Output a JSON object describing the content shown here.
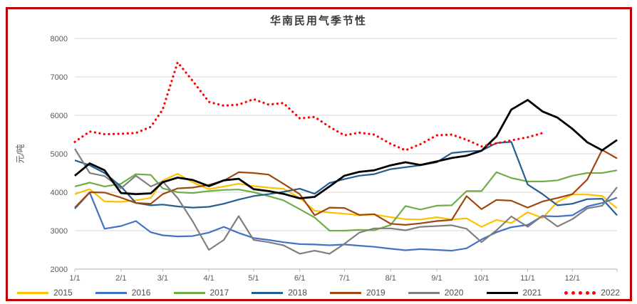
{
  "frame": {
    "border_color": "#C00000"
  },
  "chart_data": {
    "type": "line",
    "title": "华南民用气季节性",
    "ylabel": "元/吨",
    "xlabel": "",
    "ylim": [
      2000,
      8000
    ],
    "ytick_interval": 1000,
    "ytick_labels": [
      "2000",
      "3000",
      "4000",
      "5000",
      "6000",
      "7000",
      "8000"
    ],
    "xtick_labels": [
      "1/1",
      "2/1",
      "3/1",
      "4/1",
      "5/1",
      "6/1",
      "7/1",
      "8/1",
      "9/1",
      "10/1",
      "11/1",
      "12/1"
    ],
    "xtick_days": [
      1,
      32,
      60,
      91,
      121,
      152,
      182,
      213,
      244,
      274,
      305,
      335
    ],
    "grid": "horizontal",
    "legend_position": "bottom",
    "axis_color": "#BFBFBF",
    "grid_color": "#D9D9D9",
    "tick_label_color": "#595959",
    "x_days": [
      1,
      11,
      21,
      32,
      42,
      52,
      60,
      70,
      80,
      91,
      101,
      111,
      121,
      131,
      141,
      152,
      162,
      172,
      182,
      192,
      202,
      213,
      223,
      233,
      244,
      254,
      264,
      274,
      284,
      294,
      305,
      315,
      325,
      335,
      345,
      355,
      365
    ],
    "series": [
      {
        "name": "2015",
        "color": "#FFC000",
        "style": "solid",
        "width": 2.2,
        "values": [
          3950,
          4080,
          3760,
          3750,
          3790,
          3850,
          4300,
          4480,
          4260,
          4080,
          4150,
          4220,
          4160,
          4120,
          4090,
          3850,
          3520,
          3470,
          3440,
          3400,
          3420,
          3350,
          3300,
          3290,
          3350,
          3290,
          3320,
          3100,
          3280,
          3200,
          3480,
          3330,
          3750,
          3940,
          3940,
          3900,
          3580
        ]
      },
      {
        "name": "2016",
        "color": "#4472C4",
        "style": "solid",
        "width": 2.2,
        "values": [
          3570,
          3990,
          3050,
          3120,
          3250,
          2960,
          2880,
          2850,
          2860,
          2950,
          3100,
          2940,
          2810,
          2760,
          2700,
          2650,
          2640,
          2620,
          2640,
          2610,
          2580,
          2530,
          2490,
          2520,
          2500,
          2480,
          2540,
          2770,
          2960,
          3090,
          3150,
          3380,
          3370,
          3400,
          3630,
          3720,
          3860
        ]
      },
      {
        "name": "2017",
        "color": "#70AD47",
        "style": "solid",
        "width": 2.2,
        "values": [
          4150,
          4250,
          4150,
          4220,
          4470,
          4450,
          4100,
          4000,
          3980,
          4030,
          4060,
          4070,
          4000,
          3900,
          3790,
          3560,
          3340,
          3000,
          3000,
          3020,
          3010,
          3150,
          3640,
          3550,
          3650,
          3660,
          4030,
          4030,
          4520,
          4370,
          4280,
          4280,
          4310,
          4430,
          4500,
          4500,
          4570
        ]
      },
      {
        "name": "2018",
        "color": "#255E91",
        "style": "solid",
        "width": 2.2,
        "values": [
          4830,
          4700,
          4500,
          4150,
          3720,
          3660,
          3680,
          3630,
          3600,
          3620,
          3700,
          3810,
          3900,
          3950,
          4010,
          4090,
          3960,
          4240,
          4340,
          4430,
          4470,
          4600,
          4650,
          4700,
          4780,
          5020,
          5060,
          5080,
          5280,
          5310,
          4200,
          3950,
          3660,
          3700,
          3820,
          3830,
          3400
        ]
      },
      {
        "name": "2019",
        "color": "#9E480E",
        "style": "solid",
        "width": 2.2,
        "values": [
          3600,
          4000,
          3990,
          3860,
          3720,
          3700,
          3950,
          4100,
          4120,
          4190,
          4300,
          4520,
          4500,
          4460,
          4220,
          3950,
          3400,
          3600,
          3590,
          3410,
          3430,
          3180,
          3150,
          3190,
          3250,
          3280,
          3900,
          3560,
          3800,
          3780,
          3600,
          3760,
          3850,
          3950,
          4330,
          5100,
          4880
        ]
      },
      {
        "name": "2020",
        "color": "#7F7F7F",
        "style": "solid",
        "width": 2.2,
        "values": [
          5130,
          4500,
          4420,
          4100,
          4430,
          4150,
          4280,
          3850,
          3250,
          2500,
          2760,
          3380,
          2760,
          2700,
          2620,
          2400,
          2480,
          2400,
          2660,
          2950,
          3060,
          3060,
          3010,
          3100,
          3120,
          3140,
          3050,
          2700,
          3010,
          3370,
          3100,
          3390,
          3110,
          3300,
          3580,
          3650,
          4130
        ]
      },
      {
        "name": "2021",
        "color": "#000000",
        "style": "solid",
        "width": 2.8,
        "values": [
          4430,
          4750,
          4570,
          3980,
          3950,
          3970,
          4260,
          4380,
          4320,
          4160,
          4310,
          4350,
          4080,
          4030,
          3960,
          3840,
          3880,
          4150,
          4430,
          4530,
          4570,
          4700,
          4780,
          4710,
          4800,
          4890,
          4950,
          5080,
          5450,
          6150,
          6400,
          6100,
          5940,
          5650,
          5300,
          5090,
          5360
        ]
      },
      {
        "name": "2022",
        "color": "#FF0000",
        "style": "dotted",
        "width": 3.2,
        "values": [
          5310,
          5580,
          5510,
          5520,
          5540,
          5700,
          6150,
          7380,
          6900,
          6350,
          6250,
          6280,
          6420,
          6280,
          6320,
          5920,
          5960,
          5700,
          5480,
          5550,
          5500,
          5260,
          5090,
          5250,
          5480,
          5500,
          5365,
          5190,
          5270,
          5350,
          5430,
          5540,
          null,
          null,
          null,
          null,
          null
        ]
      }
    ]
  }
}
